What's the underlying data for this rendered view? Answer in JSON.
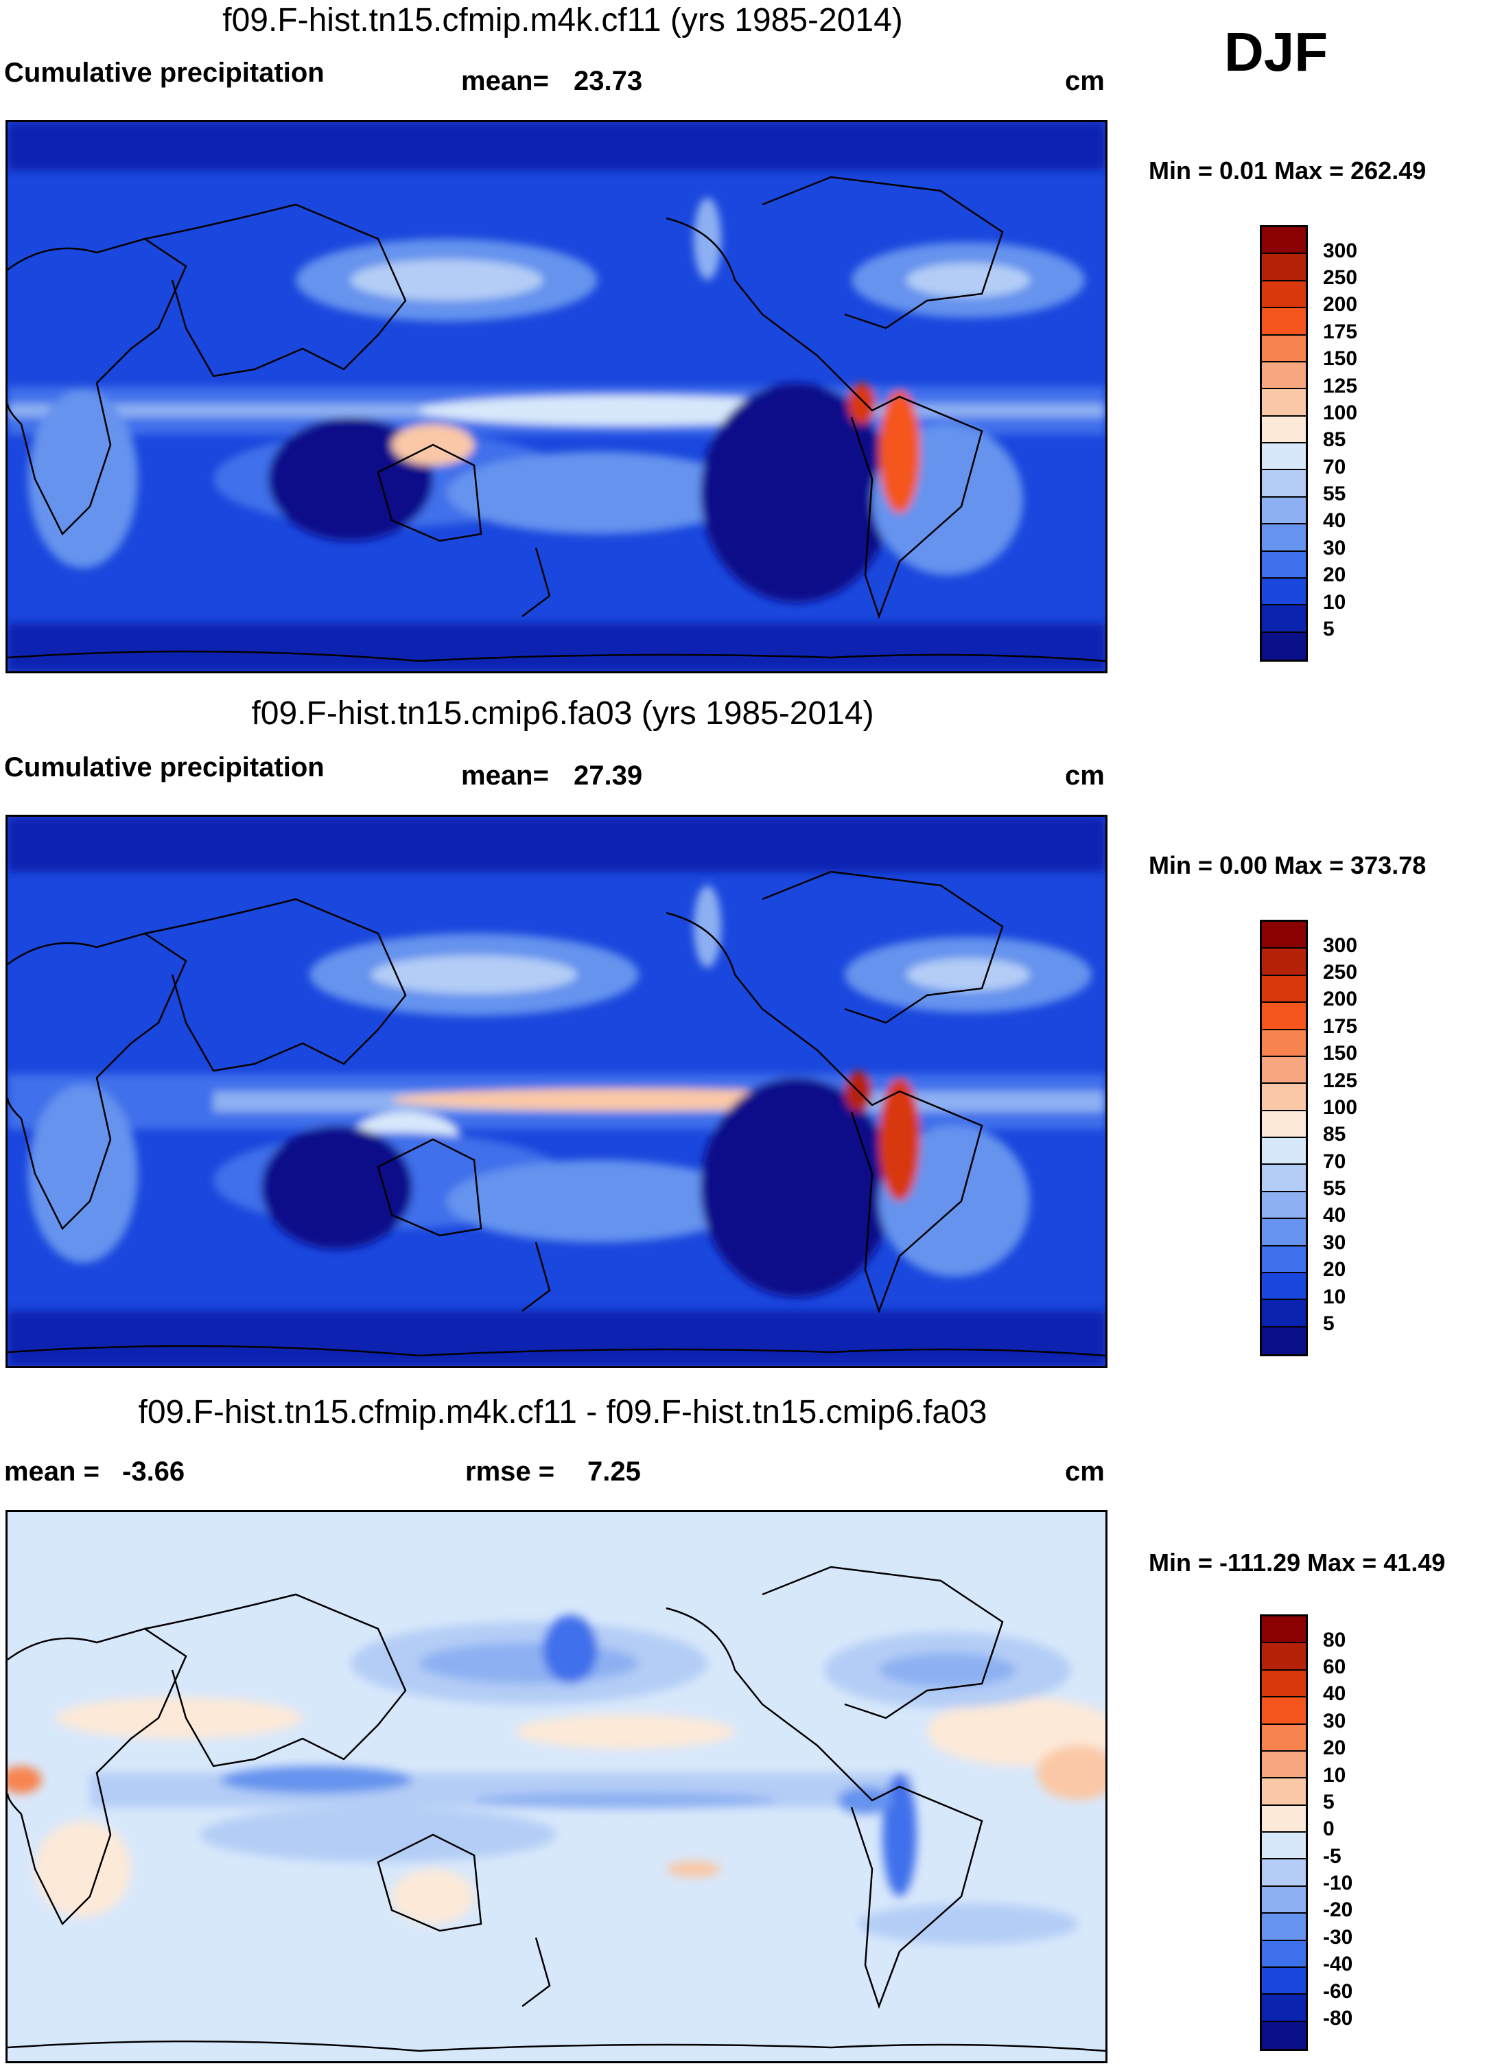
{
  "season": "DJF",
  "units": "cm",
  "panel1": {
    "title": "f09.F-hist.tn15.cfmip.m4k.cf11 (yrs 1985-2014)",
    "variable": "Cumulative precipitation",
    "mean_label": "mean=",
    "mean": "23.73",
    "min_max": "Min =   0.01 Max = 262.49"
  },
  "panel2": {
    "title": "f09.F-hist.tn15.cmip6.fa03 (yrs 1985-2014)",
    "variable": "Cumulative precipitation",
    "mean_label": "mean=",
    "mean": "27.39",
    "min_max": "Min =   0.00 Max = 373.78"
  },
  "panel3": {
    "title": "f09.F-hist.tn15.cfmip.m4k.cf11 - f09.F-hist.tn15.cmip6.fa03",
    "mean_label": "mean =",
    "mean": "-3.66",
    "rmse_label": "rmse =",
    "rmse": "7.25",
    "min_max": "Min = -111.29 Max =  41.49"
  },
  "colorbar_precip": {
    "levels": [
      "300",
      "250",
      "200",
      "175",
      "150",
      "125",
      "100",
      "85",
      "70",
      "55",
      "40",
      "30",
      "20",
      "10",
      "5"
    ],
    "colors": [
      "#8b0000",
      "#b52208",
      "#d8380c",
      "#f4561d",
      "#f7844f",
      "#f8a67f",
      "#fac8a6",
      "#fde9d8",
      "#d8e8fb",
      "#b3cdf6",
      "#8db0f2",
      "#6593ee",
      "#3f70eb",
      "#1a47dd",
      "#0a24b0",
      "#0a0f8a"
    ]
  },
  "colorbar_diff": {
    "levels": [
      "80",
      "60",
      "40",
      "30",
      "20",
      "10",
      "5",
      "0",
      "-5",
      "-10",
      "-20",
      "-30",
      "-40",
      "-60",
      "-80"
    ],
    "colors": [
      "#8b0000",
      "#b52208",
      "#d8380c",
      "#f4561d",
      "#f7844f",
      "#f8a67f",
      "#fac8a6",
      "#fde9d8",
      "#d8e8fb",
      "#b3cdf6",
      "#8db0f2",
      "#6593ee",
      "#3f70eb",
      "#1a47dd",
      "#0a24b0",
      "#0a0f8a"
    ]
  }
}
